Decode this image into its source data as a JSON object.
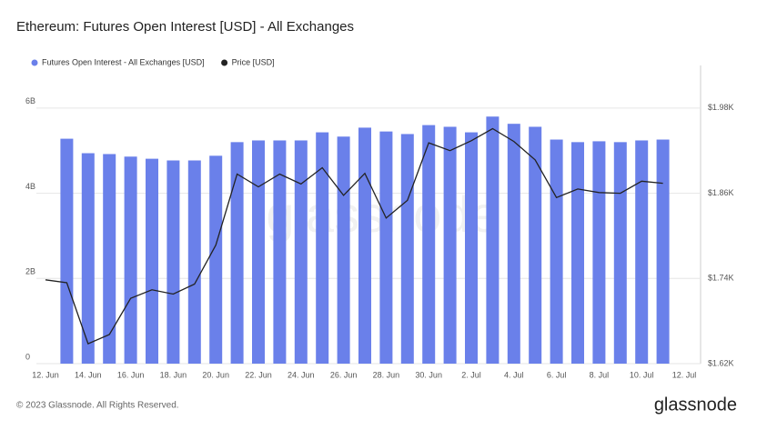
{
  "chart_data": {
    "type": "bar_line",
    "title": "Ethereum: Futures Open Interest [USD] - All Exchanges",
    "footer": "© 2023 Glassnode. All Rights Reserved.",
    "brand": "glassnode",
    "categories": [
      "12. Jun",
      null,
      "14. Jun",
      null,
      "16. Jun",
      null,
      "18. Jun",
      null,
      "20. Jun",
      null,
      "22. Jun",
      null,
      "24. Jun",
      null,
      "26. Jun",
      null,
      "28. Jun",
      null,
      "30. Jun",
      null,
      "2. Jul",
      null,
      "4. Jul",
      null,
      "6. Jul",
      null,
      "8. Jul",
      null,
      "10. Jul",
      null,
      "12. Jul"
    ],
    "series": [
      {
        "name": "Futures Open Interest - All Exchanges [USD]",
        "color": "#6a80ea",
        "type": "bar",
        "values": [
          null,
          5280000000,
          4940000000,
          4920000000,
          4860000000,
          4810000000,
          4770000000,
          4770000000,
          4880000000,
          5200000000,
          5240000000,
          5240000000,
          5240000000,
          5430000000,
          5330000000,
          5540000000,
          5450000000,
          5390000000,
          5600000000,
          5560000000,
          5430000000,
          5800000000,
          5630000000,
          5560000000,
          5260000000,
          5200000000,
          5220000000,
          5200000000,
          5240000000,
          5260000000,
          null
        ]
      },
      {
        "name": "Price [USD]",
        "color": "#222222",
        "type": "line",
        "axis": "y2",
        "values": [
          1738,
          1734,
          1648,
          1661,
          1712,
          1724,
          1718,
          1732,
          1787,
          1887,
          1869,
          1887,
          1873,
          1896,
          1857,
          1888,
          1825,
          1850,
          1931,
          1920,
          1934,
          1951,
          1933,
          1907,
          1854,
          1866,
          1861,
          1860,
          1877,
          1874,
          null
        ]
      }
    ],
    "ylim": [
      0,
      7000000000
    ],
    "yticks": [
      0,
      {
        "value": 2000000000,
        "label": "2B"
      },
      {
        "value": 4000000000,
        "label": "4B"
      },
      {
        "value": 6000000000,
        "label": "6B"
      }
    ],
    "y2lim": [
      1620,
      2040
    ],
    "y2ticks": [
      {
        "value": 1620,
        "label": "$1.62K"
      },
      {
        "value": 1740,
        "label": "$1.74K"
      },
      {
        "value": 1860,
        "label": "$1.86K"
      },
      {
        "value": 1980,
        "label": "$1.98K"
      }
    ],
    "grid": true
  }
}
